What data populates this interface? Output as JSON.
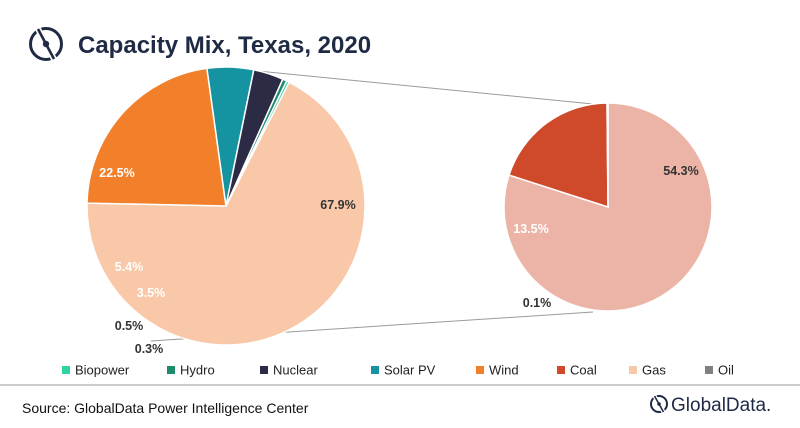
{
  "title": "Capacity Mix, Texas, 2020",
  "source": "Source: GlobalData Power Intelligence Center",
  "brand": "GlobalData.",
  "colors": {
    "Biopower": "#2ed3a2",
    "Hydro": "#1f8a6e",
    "Nuclear": "#2b2b45",
    "Solar PV": "#1593a0",
    "Wind": "#f27f2a",
    "Coal": "#cf4a2a",
    "Gas": "#f8c8a8",
    "Gas (detail)": "#ecb4a7",
    "Oil": "#808080"
  },
  "chart_data": [
    {
      "type": "pie",
      "title": "Capacity Mix, Texas, 2020",
      "slices": [
        {
          "name": "Gas",
          "value": 67.9,
          "label": "67.9%"
        },
        {
          "name": "Wind",
          "value": 22.5,
          "label": "22.5%"
        },
        {
          "name": "Solar PV",
          "value": 5.4,
          "label": "5.4%"
        },
        {
          "name": "Nuclear",
          "value": 3.5,
          "label": "3.5%"
        },
        {
          "name": "Hydro",
          "value": 0.5,
          "label": "0.5%"
        },
        {
          "name": "Biopower",
          "value": 0.3,
          "label": "0.3%"
        }
      ]
    },
    {
      "type": "pie",
      "slices": [
        {
          "name": "Gas",
          "value": 54.3,
          "label": "54.3%"
        },
        {
          "name": "Coal",
          "value": 13.5,
          "label": "13.5%"
        },
        {
          "name": "Oil",
          "value": 0.1,
          "label": "0.1%"
        }
      ]
    }
  ],
  "legend": [
    "Biopower",
    "Hydro",
    "Nuclear",
    "Solar PV",
    "Wind",
    "Coal",
    "Gas",
    "Oil"
  ]
}
